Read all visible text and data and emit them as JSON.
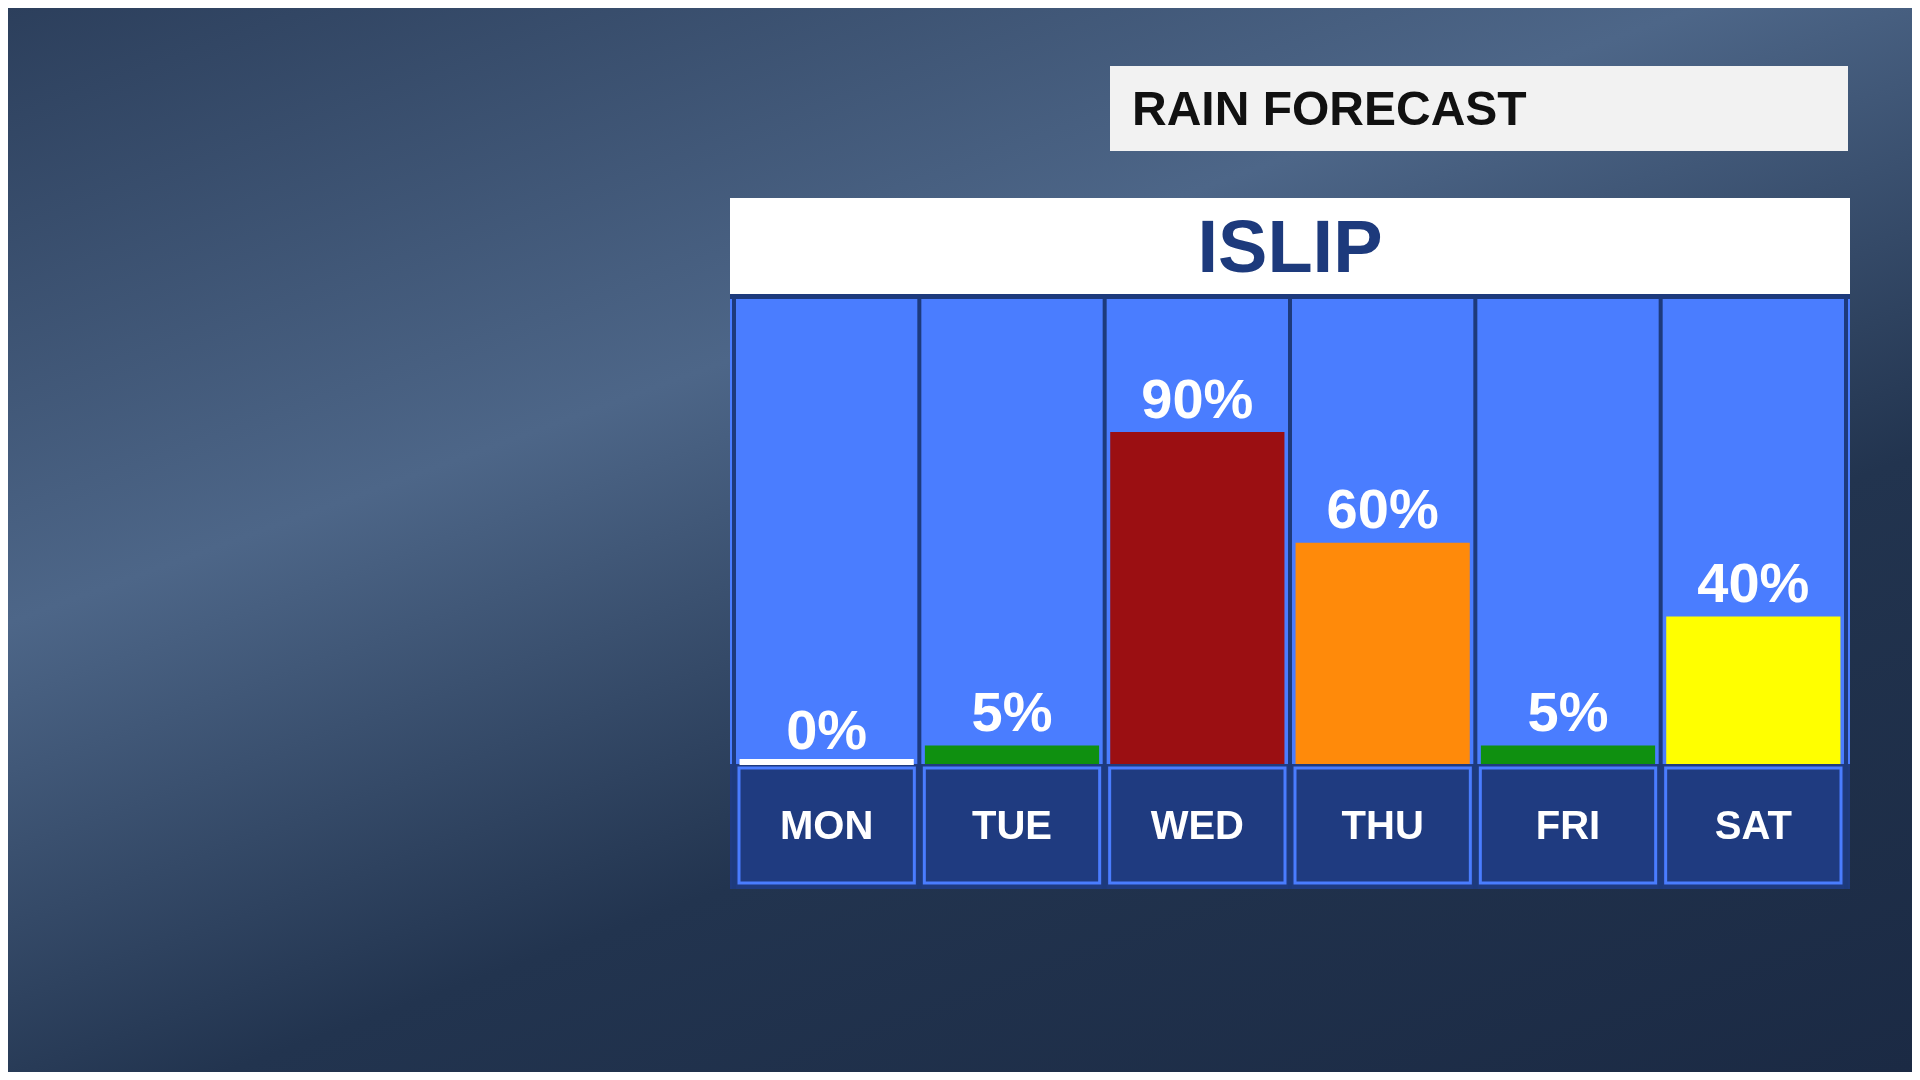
{
  "chart_data": {
    "type": "bar",
    "title": "RAIN FORECAST",
    "subtitle": "ISLIP",
    "categories": [
      "MON",
      "TUE",
      "WED",
      "THU",
      "FRI",
      "SAT"
    ],
    "values": [
      0,
      5,
      90,
      60,
      5,
      40
    ],
    "colors": [
      "#ffffff",
      "#0f9010",
      "#9b0f12",
      "#ff8a0a",
      "#0f9010",
      "#ffff00"
    ],
    "value_labels": [
      "0%",
      "5%",
      "90%",
      "60%",
      "5%",
      "40%"
    ],
    "ylim": [
      0,
      125
    ],
    "tick_labels": "x",
    "legend": false
  }
}
